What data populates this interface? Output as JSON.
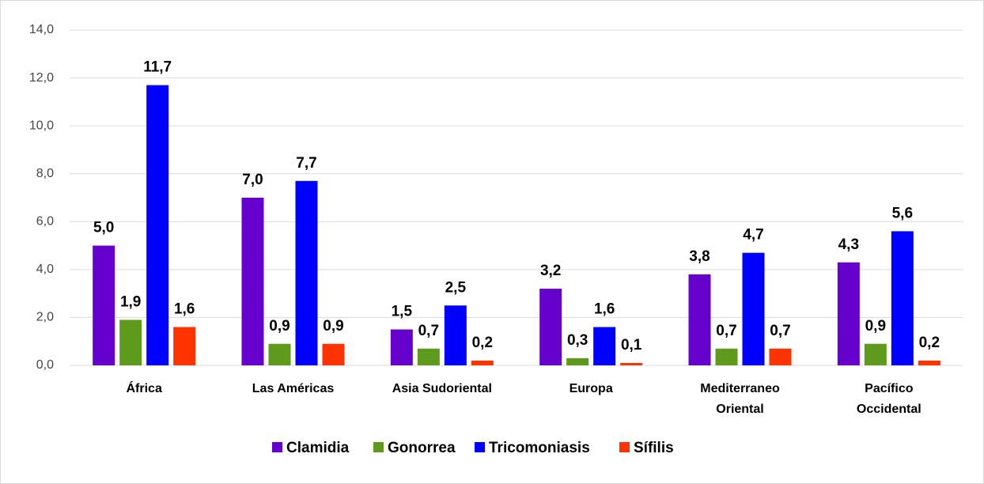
{
  "chart_data": {
    "type": "bar",
    "categories": [
      "África",
      "Las Américas",
      "Asia Sudoriental",
      "Europa",
      "Mediterraneo Oriental",
      "Pacífico Occidental"
    ],
    "series": [
      {
        "name": "Clamidia",
        "color": "#6600cc",
        "values": [
          5.0,
          7.0,
          1.5,
          3.2,
          3.8,
          4.3
        ],
        "value_labels": [
          "5,0",
          "7,0",
          "1,5",
          "3,2",
          "3,8",
          "4,3"
        ]
      },
      {
        "name": "Gonorrea",
        "color": "#5e9a1c",
        "values": [
          1.9,
          0.9,
          0.7,
          0.3,
          0.7,
          0.9
        ],
        "value_labels": [
          "1,9",
          "0,9",
          "0,7",
          "0,3",
          "0,7",
          "0,9"
        ]
      },
      {
        "name": "Tricomoniasis",
        "color": "#0000ff",
        "values": [
          11.7,
          7.7,
          2.5,
          1.6,
          4.7,
          5.6
        ],
        "value_labels": [
          "11,7",
          "7,7",
          "2,5",
          "1,6",
          "4,7",
          "5,6"
        ]
      },
      {
        "name": "Sífilis",
        "color": "#ff3300",
        "values": [
          1.6,
          0.9,
          0.2,
          0.1,
          0.7,
          0.2
        ],
        "value_labels": [
          "1,6",
          "0,9",
          "0,2",
          "0,1",
          "0,7",
          "0,2"
        ]
      }
    ],
    "ylim": [
      0,
      14
    ],
    "yticks": [
      {
        "value": 0,
        "label": "0,0"
      },
      {
        "value": 2,
        "label": "2,0"
      },
      {
        "value": 4,
        "label": "4,0"
      },
      {
        "value": 6,
        "label": "6,0"
      },
      {
        "value": 8,
        "label": "8,0"
      },
      {
        "value": 10,
        "label": "10,0"
      },
      {
        "value": 12,
        "label": "12,0"
      },
      {
        "value": 14,
        "label": "14,0"
      }
    ],
    "grid": true,
    "legend": "bottom"
  }
}
